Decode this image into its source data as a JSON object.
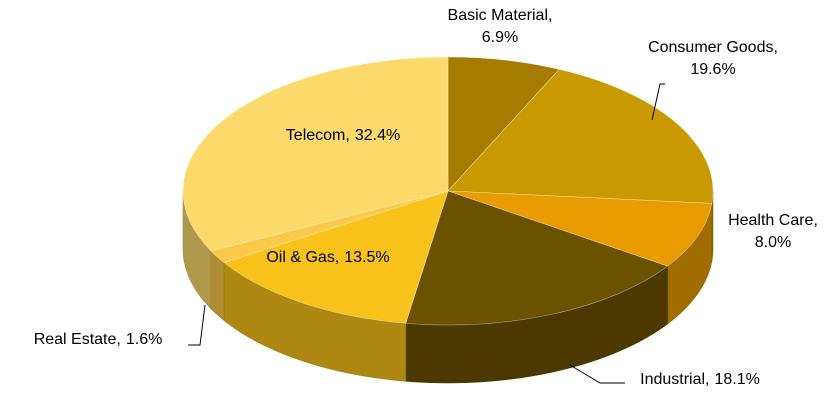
{
  "chart_data": {
    "type": "pie3d",
    "categories": [
      "Basic Material,",
      "Consumer Goods,",
      "Health Care,",
      "Industrial,",
      "Oil & Gas,",
      "Real Estate,",
      "Telecom,"
    ],
    "values": [
      6.9,
      19.6,
      8.0,
      18.1,
      13.5,
      1.6,
      32.4
    ],
    "value_labels": [
      "6.9%",
      "19.6%",
      "8.0%",
      "18.1%",
      "13.5%",
      "1.6%",
      "32.4%"
    ],
    "colors": [
      "#a67c00",
      "#c89a00",
      "#e89c00",
      "#6b5200",
      "#f9c21a",
      "#fbc94a",
      "#fcd96b"
    ]
  }
}
